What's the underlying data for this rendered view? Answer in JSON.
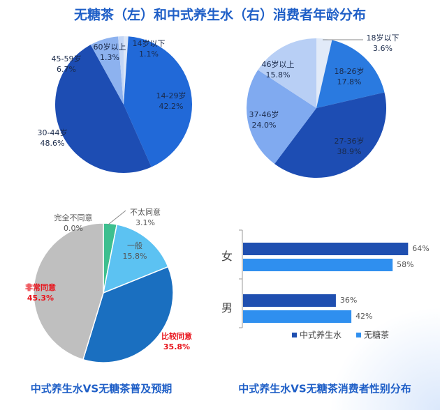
{
  "title": "无糖茶（左）和中式养生水（右）消费者年龄分布",
  "chart_data": [
    {
      "type": "pie",
      "categories": [
        "14岁以下",
        "14-29岁",
        "30-44岁",
        "45-59岁",
        "60岁以上"
      ],
      "values": [
        1.1,
        42.2,
        48.6,
        6.7,
        1.3
      ],
      "value_labels": [
        "1.1%",
        "42.2%",
        "48.6%",
        "6.7%",
        "1.3%"
      ],
      "colors": [
        "#dbe6f7",
        "#2169d8",
        "#1d4db3",
        "#8db2ef",
        "#c3d6f6"
      ]
    },
    {
      "type": "pie",
      "categories": [
        "18岁以下",
        "18-26岁",
        "27-36岁",
        "37-46岁",
        "46岁以上"
      ],
      "values": [
        3.6,
        17.8,
        38.9,
        24.0,
        15.8
      ],
      "value_labels": [
        "3.6%",
        "17.8%",
        "38.9%",
        "24.0%",
        "15.8%"
      ],
      "colors": [
        "#e1eaf8",
        "#2a7ae0",
        "#1d4db3",
        "#80aaf0",
        "#b8cff5"
      ]
    },
    {
      "type": "pie",
      "title": "中式养生水VS无糖茶普及预期",
      "categories": [
        "完全不同意",
        "不太同意",
        "一般",
        "比较同意",
        "非常同意"
      ],
      "values": [
        0.0,
        3.1,
        15.8,
        35.8,
        45.3
      ],
      "value_labels": [
        "0.0%",
        "3.1%",
        "15.8%",
        "35.8%",
        "45.3%"
      ],
      "colors": [
        "#9e9e9e",
        "#3dbf8f",
        "#5cc2f2",
        "#1a6fc0",
        "#bfbfbf"
      ],
      "label_colors": [
        "#555555",
        "#555555",
        "#555555",
        "#e8141c",
        "#e8141c"
      ]
    },
    {
      "type": "bar",
      "orientation": "horizontal",
      "title": "中式养生水VS无糖茶消费者性别分布",
      "categories": [
        "女",
        "男"
      ],
      "series": [
        {
          "name": "中式养生水",
          "color": "#1f4fb0",
          "values": [
            64,
            36
          ],
          "value_labels": [
            "64%",
            "36%"
          ]
        },
        {
          "name": "无糖茶",
          "color": "#2f8fef",
          "values": [
            58,
            42
          ],
          "value_labels": [
            "58%",
            "42%"
          ]
        }
      ],
      "xlim": [
        0,
        65
      ],
      "legend": "bottom"
    }
  ]
}
